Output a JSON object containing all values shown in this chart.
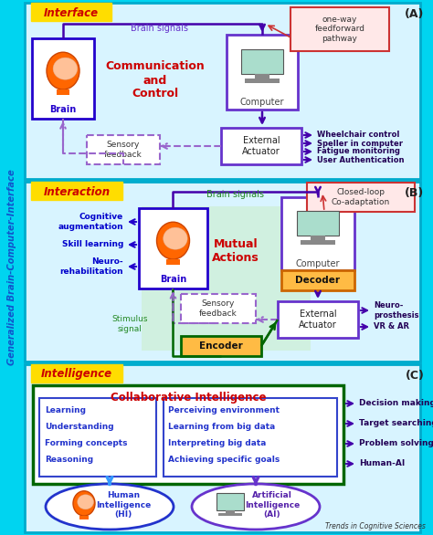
{
  "bg_color": "#00d4f0",
  "fig_w": 4.74,
  "fig_h": 5.86,
  "title_left": "Generalized Brain-Computer-Interface",
  "footer": "Trends in Cognitive Sciences",
  "right_items_A": [
    "Wheelchair control",
    "Speller in computer",
    "Fatigue monitoring",
    "User Authentication"
  ],
  "right_items_B": [
    "Neuro-\nprosthesis",
    "VR & AR"
  ],
  "left_items_B": [
    "Cognitive\naugmentation",
    "Skill learning",
    "Neuro-\nrehabilitation"
  ],
  "right_items_C": [
    "Decision making",
    "Target searching",
    "Problem solving",
    "Human-AI"
  ],
  "collab_left": [
    "Learning",
    "Understanding",
    "Forming concepts",
    "Reasoning"
  ],
  "collab_right": [
    "Perceiving environment",
    "Learning from big data",
    "Interpreting big data",
    "Achieving specific goals"
  ],
  "hi_label": "Human\nIntelligence\n(HI)",
  "ai_label": "Artificial\nIntelligence\n(AI)",
  "purple_dark": "#4400aa",
  "purple_mid": "#6633cc",
  "purple_light": "#9966cc",
  "blue_dark": "#2200cc",
  "orange": "#ff6600",
  "orange_dark": "#cc4400",
  "green_dark": "#006600",
  "green_mid": "#228822",
  "green_light": "#88dd88",
  "red": "#cc0000",
  "yellow": "#ffdd00",
  "box_red_bg": "#ffe8e8",
  "box_red_ec": "#cc3333",
  "cyan_border": "#00aacc",
  "panel_bg": "#d8f4ff"
}
